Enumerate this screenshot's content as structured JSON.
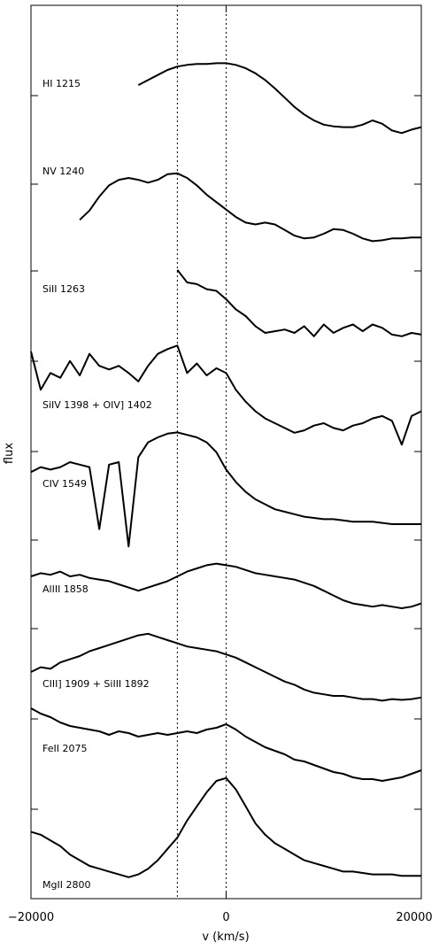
{
  "chart_data": {
    "type": "line",
    "title": "",
    "xlabel": "v (km/s)",
    "ylabel": "flux",
    "xlim": [
      -20000,
      20000
    ],
    "x_ticks": [
      -20000,
      0,
      20000
    ],
    "x_tick_labels": [
      "−20000",
      "0",
      "20000"
    ],
    "reference_lines_v": [
      -5000,
      0
    ],
    "grid": false,
    "series": [
      {
        "name": "HI 1215",
        "x": [
          -9000,
          -8000,
          -7000,
          -6000,
          -5000,
          -4000,
          -3000,
          -2000,
          -1000,
          0,
          1000,
          2000,
          3000,
          4000,
          5000,
          6000,
          7000,
          8000,
          9000,
          10000,
          11000,
          12000,
          13000,
          14000,
          15000,
          16000,
          17000,
          18000,
          19000,
          20000
        ],
        "y": [
          0.62,
          0.68,
          0.74,
          0.8,
          0.84,
          0.86,
          0.87,
          0.87,
          0.88,
          0.88,
          0.86,
          0.82,
          0.76,
          0.68,
          0.58,
          0.47,
          0.36,
          0.27,
          0.2,
          0.15,
          0.13,
          0.12,
          0.12,
          0.15,
          0.2,
          0.16,
          0.08,
          0.05,
          0.09,
          0.12
        ]
      },
      {
        "name": "NV 1240",
        "x": [
          -15000,
          -14000,
          -13000,
          -12000,
          -11000,
          -10000,
          -9000,
          -8000,
          -7000,
          -6000,
          -5000,
          -4000,
          -3000,
          -2000,
          -1000,
          0,
          1000,
          2000,
          3000,
          4000,
          5000,
          6000,
          7000,
          8000,
          9000,
          10000,
          11000,
          12000,
          13000,
          14000,
          15000,
          16000,
          17000,
          18000,
          19000,
          20000
        ],
        "y": [
          0.35,
          0.45,
          0.6,
          0.72,
          0.78,
          0.8,
          0.78,
          0.75,
          0.78,
          0.84,
          0.85,
          0.8,
          0.72,
          0.62,
          0.54,
          0.46,
          0.38,
          0.32,
          0.3,
          0.32,
          0.3,
          0.24,
          0.18,
          0.15,
          0.16,
          0.2,
          0.25,
          0.24,
          0.2,
          0.15,
          0.12,
          0.13,
          0.15,
          0.15,
          0.16,
          0.16
        ]
      },
      {
        "name": "SiII 1263",
        "x": [
          -5000,
          -4000,
          -3000,
          -2000,
          -1000,
          0,
          1000,
          2000,
          3000,
          4000,
          5000,
          6000,
          7000,
          8000,
          9000,
          10000,
          11000,
          12000,
          13000,
          14000,
          15000,
          16000,
          17000,
          18000,
          19000,
          20000
        ],
        "y": [
          0.95,
          0.8,
          0.78,
          0.72,
          0.7,
          0.6,
          0.48,
          0.4,
          0.28,
          0.2,
          0.22,
          0.24,
          0.2,
          0.28,
          0.16,
          0.3,
          0.2,
          0.26,
          0.3,
          0.22,
          0.3,
          0.26,
          0.18,
          0.16,
          0.2,
          0.18
        ]
      },
      {
        "name": "SiIV 1398 + OIV] 1402",
        "x": [
          -20000,
          -19000,
          -18000,
          -17000,
          -16000,
          -15000,
          -14000,
          -13000,
          -12000,
          -11000,
          -10000,
          -9000,
          -8000,
          -7000,
          -6000,
          -5000,
          -4000,
          -3000,
          -2000,
          -1000,
          0,
          1000,
          2000,
          3000,
          4000,
          5000,
          6000,
          7000,
          8000,
          9000,
          10000,
          11000,
          12000,
          13000,
          14000,
          15000,
          16000,
          17000,
          18000,
          19000,
          20000
        ],
        "y": [
          0.8,
          0.48,
          0.62,
          0.58,
          0.72,
          0.6,
          0.78,
          0.68,
          0.65,
          0.68,
          0.62,
          0.55,
          0.68,
          0.78,
          0.82,
          0.85,
          0.62,
          0.7,
          0.6,
          0.66,
          0.62,
          0.48,
          0.38,
          0.3,
          0.24,
          0.2,
          0.16,
          0.12,
          0.14,
          0.18,
          0.2,
          0.16,
          0.14,
          0.18,
          0.2,
          0.24,
          0.26,
          0.22,
          0.02,
          0.26,
          0.3
        ]
      },
      {
        "name": "CIV 1549",
        "x": [
          -20000,
          -19000,
          -18000,
          -17000,
          -16000,
          -15000,
          -14000,
          -13000,
          -12000,
          -11000,
          -10000,
          -9000,
          -8000,
          -7000,
          -6000,
          -5000,
          -4000,
          -3000,
          -2000,
          -1000,
          0,
          1000,
          2000,
          3000,
          4000,
          5000,
          6000,
          7000,
          8000,
          9000,
          10000,
          11000,
          12000,
          13000,
          14000,
          15000,
          16000,
          17000,
          18000,
          19000,
          20000
        ],
        "y": [
          0.62,
          0.66,
          0.64,
          0.66,
          0.7,
          0.68,
          0.66,
          0.16,
          0.68,
          0.7,
          0.02,
          0.74,
          0.86,
          0.9,
          0.93,
          0.94,
          0.92,
          0.9,
          0.86,
          0.78,
          0.64,
          0.54,
          0.46,
          0.4,
          0.36,
          0.32,
          0.3,
          0.28,
          0.26,
          0.25,
          0.24,
          0.24,
          0.23,
          0.22,
          0.22,
          0.22,
          0.21,
          0.2,
          0.2,
          0.2,
          0.2
        ]
      },
      {
        "name": "AlIII 1858",
        "x": [
          -20000,
          -19000,
          -18000,
          -17000,
          -16000,
          -15000,
          -14000,
          -13000,
          -12000,
          -11000,
          -10000,
          -9000,
          -8000,
          -7000,
          -6000,
          -5000,
          -4000,
          -3000,
          -2000,
          -1000,
          0,
          1000,
          2000,
          3000,
          4000,
          5000,
          6000,
          7000,
          8000,
          9000,
          10000,
          11000,
          12000,
          13000,
          14000,
          15000,
          16000,
          17000,
          18000,
          19000,
          20000
        ],
        "y": [
          0.6,
          0.64,
          0.62,
          0.66,
          0.6,
          0.62,
          0.58,
          0.56,
          0.54,
          0.5,
          0.46,
          0.42,
          0.46,
          0.5,
          0.54,
          0.6,
          0.66,
          0.7,
          0.74,
          0.76,
          0.74,
          0.72,
          0.68,
          0.64,
          0.62,
          0.6,
          0.58,
          0.56,
          0.52,
          0.48,
          0.42,
          0.36,
          0.3,
          0.26,
          0.24,
          0.22,
          0.24,
          0.22,
          0.2,
          0.22,
          0.26
        ]
      },
      {
        "name": "CIII] 1909 + SiIII 1892",
        "x": [
          -20000,
          -19000,
          -18000,
          -17000,
          -16000,
          -15000,
          -14000,
          -13000,
          -12000,
          -11000,
          -10000,
          -9000,
          -8000,
          -7000,
          -6000,
          -5000,
          -4000,
          -3000,
          -2000,
          -1000,
          0,
          1000,
          2000,
          3000,
          4000,
          5000,
          6000,
          7000,
          8000,
          9000,
          10000,
          11000,
          12000,
          13000,
          14000,
          15000,
          16000,
          17000,
          18000,
          19000,
          20000
        ],
        "y": [
          0.4,
          0.46,
          0.44,
          0.52,
          0.56,
          0.6,
          0.66,
          0.7,
          0.74,
          0.78,
          0.82,
          0.86,
          0.88,
          0.84,
          0.8,
          0.76,
          0.72,
          0.7,
          0.68,
          0.66,
          0.62,
          0.58,
          0.52,
          0.46,
          0.4,
          0.34,
          0.28,
          0.24,
          0.18,
          0.14,
          0.12,
          0.1,
          0.1,
          0.08,
          0.06,
          0.06,
          0.04,
          0.06,
          0.05,
          0.06,
          0.08
        ]
      },
      {
        "name": "FeII 2075",
        "x": [
          -20000,
          -19000,
          -18000,
          -17000,
          -16000,
          -15000,
          -14000,
          -13000,
          -12000,
          -11000,
          -10000,
          -9000,
          -8000,
          -7000,
          -6000,
          -5000,
          -4000,
          -3000,
          -2000,
          -1000,
          0,
          1000,
          2000,
          3000,
          4000,
          5000,
          6000,
          7000,
          8000,
          9000,
          10000,
          11000,
          12000,
          13000,
          14000,
          15000,
          16000,
          17000,
          18000,
          19000,
          20000
        ],
        "y": [
          0.9,
          0.84,
          0.8,
          0.74,
          0.7,
          0.68,
          0.66,
          0.64,
          0.6,
          0.64,
          0.62,
          0.58,
          0.6,
          0.62,
          0.6,
          0.62,
          0.64,
          0.62,
          0.66,
          0.68,
          0.72,
          0.66,
          0.58,
          0.52,
          0.46,
          0.42,
          0.38,
          0.32,
          0.3,
          0.26,
          0.22,
          0.18,
          0.16,
          0.12,
          0.1,
          0.1,
          0.08,
          0.1,
          0.12,
          0.16,
          0.2
        ]
      },
      {
        "name": "MgII 2800",
        "x": [
          -20000,
          -19000,
          -18000,
          -17000,
          -16000,
          -15000,
          -14000,
          -13000,
          -12000,
          -11000,
          -10000,
          -9000,
          -8000,
          -7000,
          -6000,
          -5000,
          -4000,
          -3000,
          -2000,
          -1000,
          0,
          1000,
          2000,
          3000,
          4000,
          5000,
          6000,
          7000,
          8000,
          9000,
          10000,
          11000,
          12000,
          13000,
          14000,
          15000,
          16000,
          17000,
          18000,
          19000,
          20000
        ],
        "y": [
          0.44,
          0.42,
          0.38,
          0.34,
          0.28,
          0.24,
          0.2,
          0.18,
          0.16,
          0.14,
          0.12,
          0.14,
          0.18,
          0.24,
          0.32,
          0.4,
          0.52,
          0.62,
          0.72,
          0.8,
          0.82,
          0.74,
          0.62,
          0.5,
          0.42,
          0.36,
          0.32,
          0.28,
          0.24,
          0.22,
          0.2,
          0.18,
          0.16,
          0.16,
          0.15,
          0.14,
          0.14,
          0.14,
          0.13,
          0.13,
          0.13
        ]
      }
    ]
  }
}
